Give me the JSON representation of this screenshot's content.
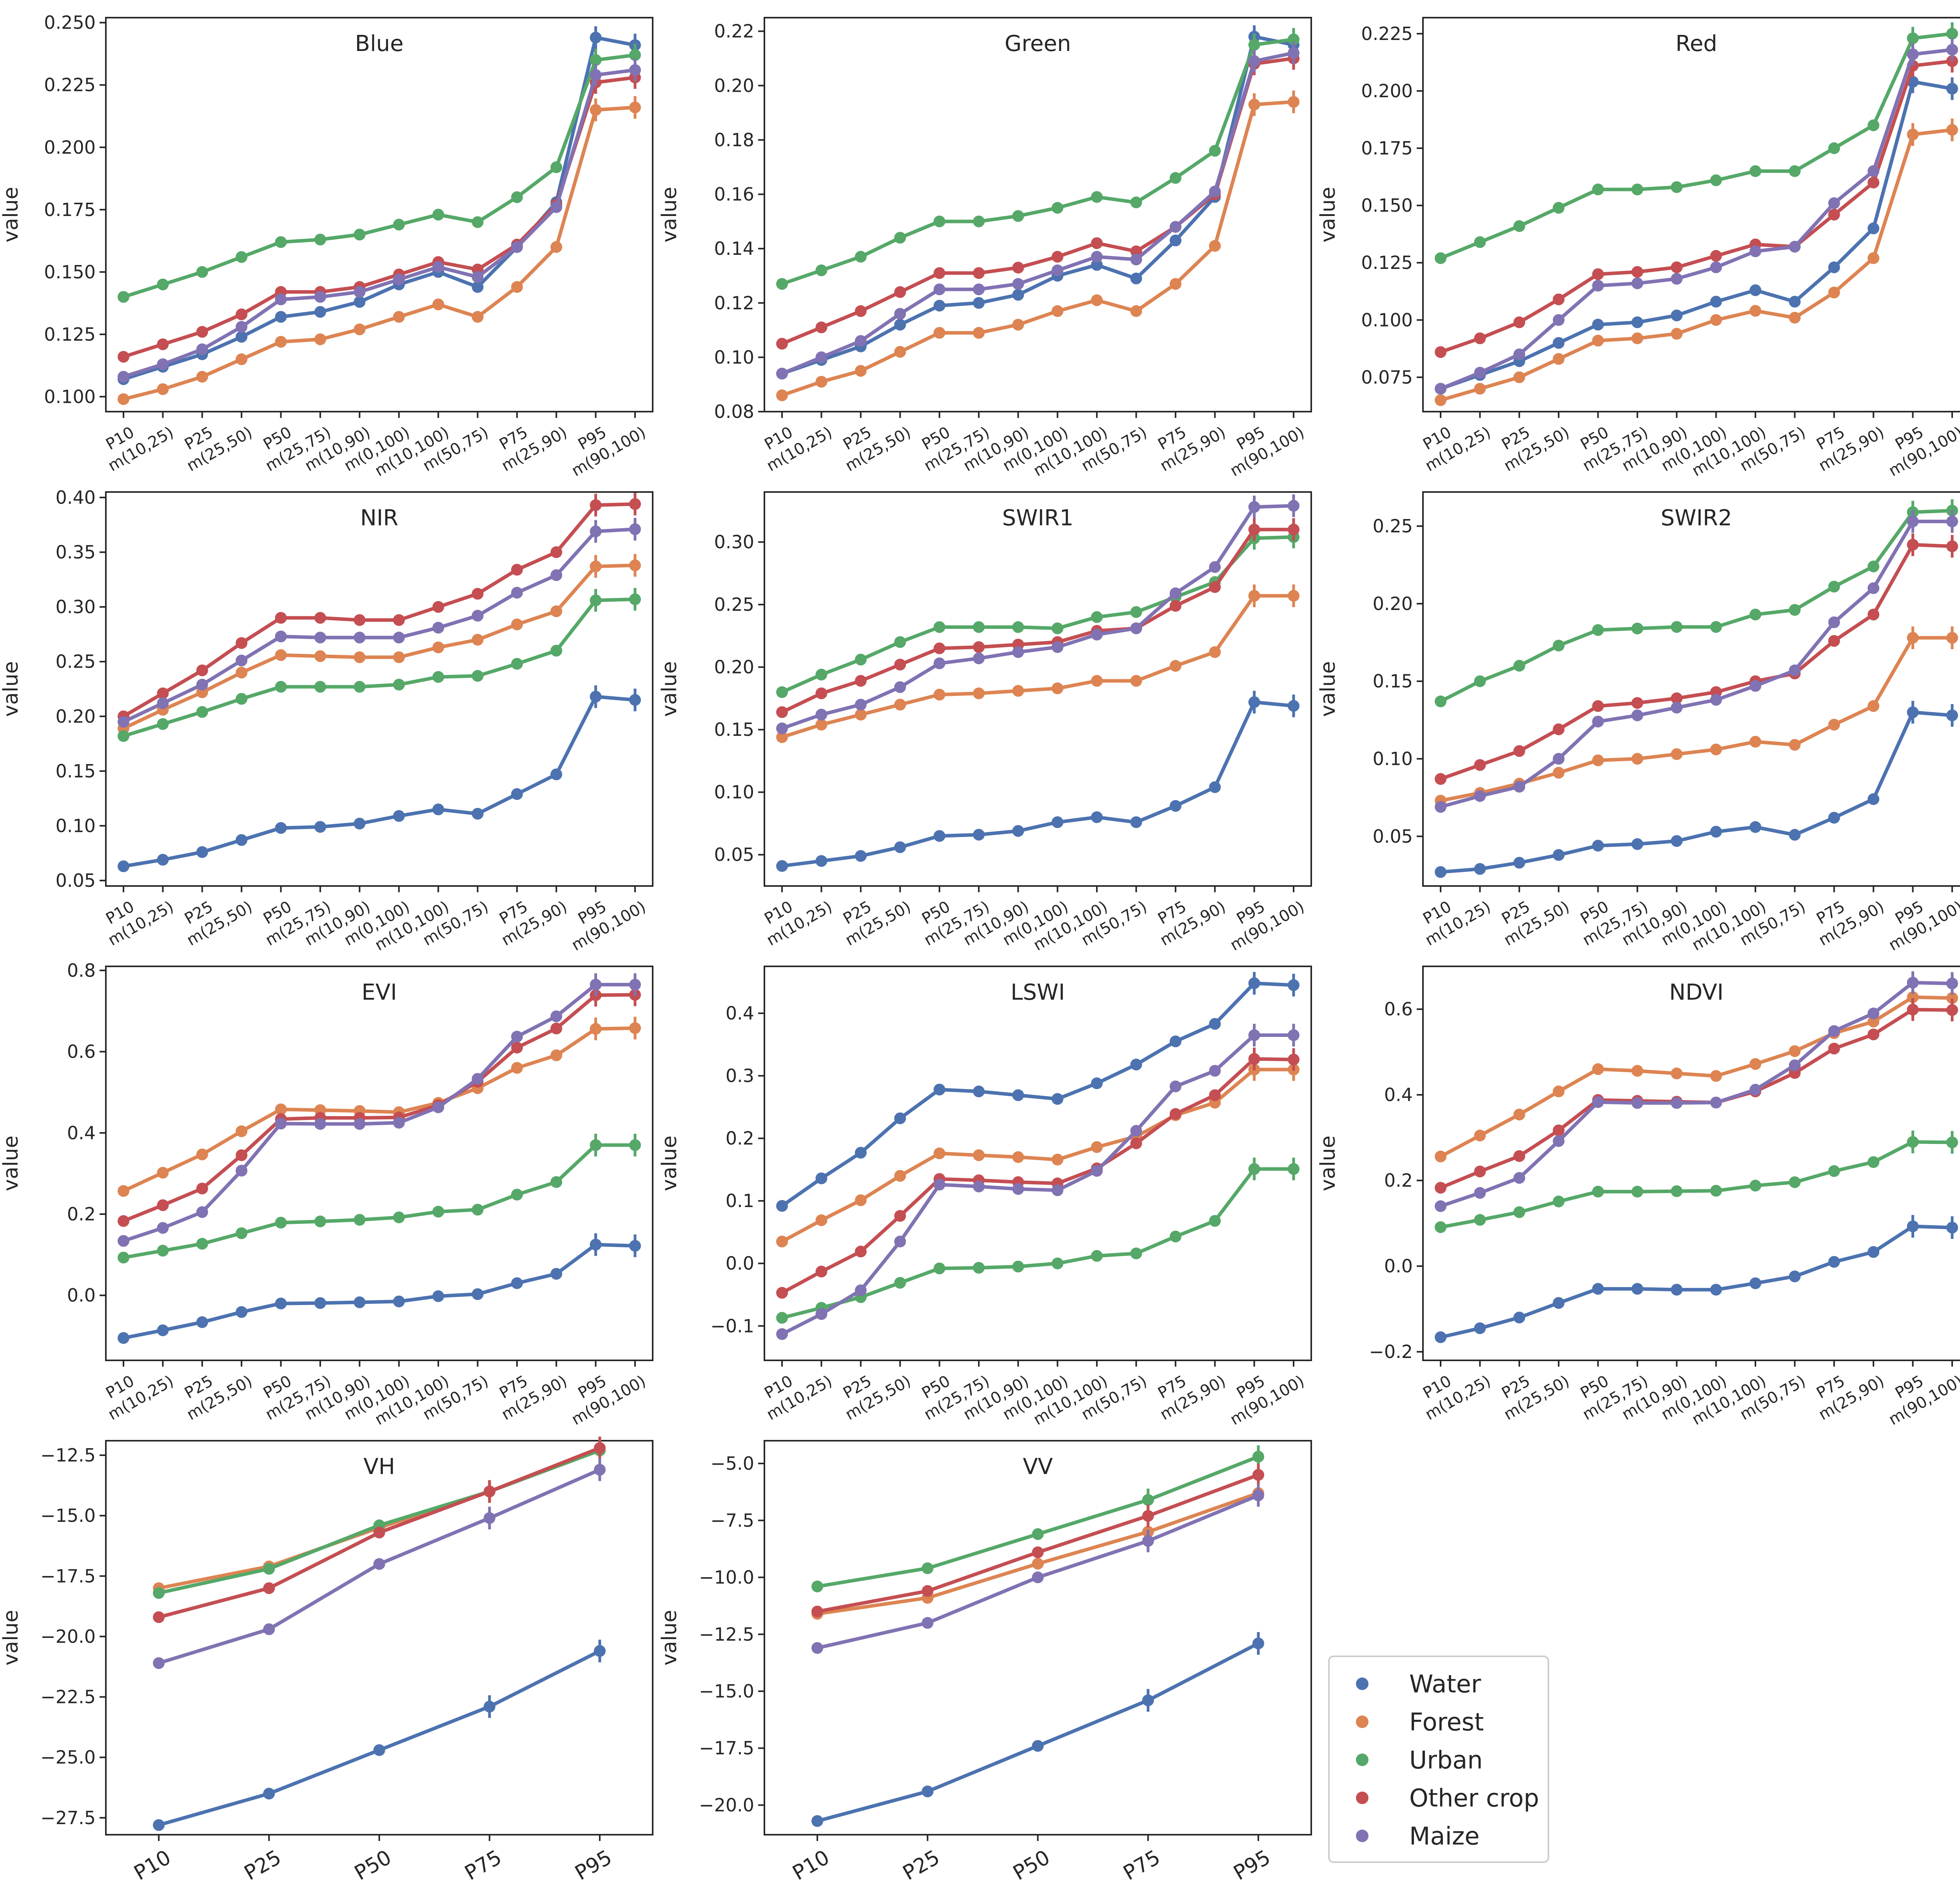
{
  "y_label": "value",
  "series": [
    {
      "name": "Water",
      "color": "#4c72b0"
    },
    {
      "name": "Forest",
      "color": "#dd8452"
    },
    {
      "name": "Urban",
      "color": "#55a868"
    },
    {
      "name": "Other crop",
      "color": "#c44e52"
    },
    {
      "name": "Maize",
      "color": "#8172b3"
    }
  ],
  "categories_long": [
    "P10",
    "m(10,25)",
    "P25",
    "m(25,50)",
    "P50",
    "m(25,75)",
    "m(10,90)",
    "m(0,100)",
    "m(10,100)",
    "m(50,75)",
    "P75",
    "m(25,90)",
    "P95",
    "m(90,100)"
  ],
  "categories_short": [
    "P10",
    "P25",
    "P50",
    "P75",
    "P95"
  ],
  "chart_data": [
    {
      "type": "line",
      "title": "Blue",
      "categories": "long",
      "ylim": [
        0.094,
        0.252
      ],
      "yticks": [
        0.1,
        0.125,
        0.15,
        0.175,
        0.2,
        0.225,
        0.25
      ],
      "ytick_labels": [
        "0.100",
        "0.125",
        "0.150",
        "0.175",
        "0.200",
        "0.225",
        "0.250"
      ],
      "values": {
        "Water": [
          0.107,
          0.112,
          0.117,
          0.124,
          0.132,
          0.134,
          0.138,
          0.145,
          0.15,
          0.144,
          0.16,
          0.178,
          0.244,
          0.241
        ],
        "Forest": [
          0.099,
          0.103,
          0.108,
          0.115,
          0.122,
          0.123,
          0.127,
          0.132,
          0.137,
          0.132,
          0.144,
          0.16,
          0.215,
          0.216
        ],
        "Urban": [
          0.14,
          0.145,
          0.15,
          0.156,
          0.162,
          0.163,
          0.165,
          0.169,
          0.173,
          0.17,
          0.18,
          0.192,
          0.235,
          0.237
        ],
        "Other crop": [
          0.116,
          0.121,
          0.126,
          0.133,
          0.142,
          0.142,
          0.144,
          0.149,
          0.154,
          0.151,
          0.161,
          0.177,
          0.226,
          0.228
        ],
        "Maize": [
          0.108,
          0.113,
          0.119,
          0.128,
          0.139,
          0.14,
          0.142,
          0.147,
          0.152,
          0.148,
          0.16,
          0.176,
          0.229,
          0.231
        ]
      }
    },
    {
      "type": "line",
      "title": "Green",
      "categories": "long",
      "ylim": [
        0.08,
        0.225
      ],
      "yticks": [
        0.08,
        0.1,
        0.12,
        0.14,
        0.16,
        0.18,
        0.2,
        0.22
      ],
      "ytick_labels": [
        "0.08",
        "0.10",
        "0.12",
        "0.14",
        "0.16",
        "0.18",
        "0.20",
        "0.22"
      ],
      "values": {
        "Water": [
          0.094,
          0.099,
          0.104,
          0.112,
          0.119,
          0.12,
          0.123,
          0.13,
          0.134,
          0.129,
          0.143,
          0.159,
          0.218,
          0.215
        ],
        "Forest": [
          0.086,
          0.091,
          0.095,
          0.102,
          0.109,
          0.109,
          0.112,
          0.117,
          0.121,
          0.117,
          0.127,
          0.141,
          0.193,
          0.194
        ],
        "Urban": [
          0.127,
          0.132,
          0.137,
          0.144,
          0.15,
          0.15,
          0.152,
          0.155,
          0.159,
          0.157,
          0.166,
          0.176,
          0.215,
          0.217
        ],
        "Other crop": [
          0.105,
          0.111,
          0.117,
          0.124,
          0.131,
          0.131,
          0.133,
          0.137,
          0.142,
          0.139,
          0.148,
          0.16,
          0.208,
          0.21
        ],
        "Maize": [
          0.094,
          0.1,
          0.106,
          0.116,
          0.125,
          0.125,
          0.127,
          0.132,
          0.137,
          0.136,
          0.148,
          0.161,
          0.209,
          0.212
        ]
      }
    },
    {
      "type": "line",
      "title": "Red",
      "categories": "long",
      "ylim": [
        0.06,
        0.232
      ],
      "yticks": [
        0.075,
        0.1,
        0.125,
        0.15,
        0.175,
        0.2,
        0.225
      ],
      "ytick_labels": [
        "0.075",
        "0.100",
        "0.125",
        "0.150",
        "0.175",
        "0.200",
        "0.225"
      ],
      "values": {
        "Water": [
          0.07,
          0.076,
          0.082,
          0.09,
          0.098,
          0.099,
          0.102,
          0.108,
          0.113,
          0.108,
          0.123,
          0.14,
          0.204,
          0.201
        ],
        "Forest": [
          0.065,
          0.07,
          0.075,
          0.083,
          0.091,
          0.092,
          0.094,
          0.1,
          0.104,
          0.101,
          0.112,
          0.127,
          0.181,
          0.183
        ],
        "Urban": [
          0.127,
          0.134,
          0.141,
          0.149,
          0.157,
          0.157,
          0.158,
          0.161,
          0.165,
          0.165,
          0.175,
          0.185,
          0.223,
          0.225
        ],
        "Other crop": [
          0.086,
          0.092,
          0.099,
          0.109,
          0.12,
          0.121,
          0.123,
          0.128,
          0.133,
          0.132,
          0.146,
          0.16,
          0.211,
          0.213
        ],
        "Maize": [
          0.07,
          0.077,
          0.085,
          0.1,
          0.115,
          0.116,
          0.118,
          0.123,
          0.13,
          0.132,
          0.151,
          0.165,
          0.216,
          0.218
        ]
      }
    },
    {
      "type": "line",
      "title": "NIR",
      "categories": "long",
      "ylim": [
        0.045,
        0.405
      ],
      "yticks": [
        0.05,
        0.1,
        0.15,
        0.2,
        0.25,
        0.3,
        0.35,
        0.4
      ],
      "ytick_labels": [
        "0.05",
        "0.10",
        "0.15",
        "0.20",
        "0.25",
        "0.30",
        "0.35",
        "0.40"
      ],
      "values": {
        "Water": [
          0.063,
          0.069,
          0.076,
          0.087,
          0.098,
          0.099,
          0.102,
          0.109,
          0.115,
          0.111,
          0.129,
          0.147,
          0.218,
          0.215
        ],
        "Forest": [
          0.189,
          0.206,
          0.222,
          0.24,
          0.256,
          0.255,
          0.254,
          0.254,
          0.263,
          0.27,
          0.284,
          0.296,
          0.337,
          0.338
        ],
        "Urban": [
          0.182,
          0.193,
          0.204,
          0.216,
          0.227,
          0.227,
          0.227,
          0.229,
          0.236,
          0.237,
          0.248,
          0.26,
          0.306,
          0.307
        ],
        "Other crop": [
          0.2,
          0.221,
          0.242,
          0.267,
          0.29,
          0.29,
          0.288,
          0.288,
          0.3,
          0.312,
          0.334,
          0.35,
          0.393,
          0.394
        ],
        "Maize": [
          0.195,
          0.212,
          0.229,
          0.251,
          0.273,
          0.272,
          0.272,
          0.272,
          0.281,
          0.292,
          0.313,
          0.329,
          0.369,
          0.371
        ]
      }
    },
    {
      "type": "line",
      "title": "SWIR1",
      "categories": "long",
      "ylim": [
        0.025,
        0.34
      ],
      "yticks": [
        0.05,
        0.1,
        0.15,
        0.2,
        0.25,
        0.3
      ],
      "ytick_labels": [
        "0.05",
        "0.10",
        "0.15",
        "0.20",
        "0.25",
        "0.30"
      ],
      "values": {
        "Water": [
          0.041,
          0.045,
          0.049,
          0.056,
          0.065,
          0.066,
          0.069,
          0.076,
          0.08,
          0.076,
          0.089,
          0.104,
          0.172,
          0.169
        ],
        "Forest": [
          0.144,
          0.154,
          0.162,
          0.17,
          0.178,
          0.179,
          0.181,
          0.183,
          0.189,
          0.189,
          0.201,
          0.212,
          0.257,
          0.257
        ],
        "Urban": [
          0.18,
          0.194,
          0.206,
          0.22,
          0.232,
          0.232,
          0.232,
          0.231,
          0.24,
          0.244,
          0.256,
          0.268,
          0.303,
          0.304
        ],
        "Other crop": [
          0.164,
          0.179,
          0.189,
          0.202,
          0.215,
          0.216,
          0.218,
          0.22,
          0.229,
          0.231,
          0.249,
          0.264,
          0.31,
          0.31
        ],
        "Maize": [
          0.151,
          0.162,
          0.17,
          0.184,
          0.203,
          0.207,
          0.212,
          0.216,
          0.226,
          0.231,
          0.259,
          0.28,
          0.328,
          0.329
        ]
      }
    },
    {
      "type": "line",
      "title": "SWIR2",
      "categories": "long",
      "ylim": [
        0.018,
        0.272
      ],
      "yticks": [
        0.05,
        0.1,
        0.15,
        0.2,
        0.25
      ],
      "ytick_labels": [
        "0.05",
        "0.10",
        "0.15",
        "0.20",
        "0.25"
      ],
      "values": {
        "Water": [
          0.027,
          0.029,
          0.033,
          0.038,
          0.044,
          0.045,
          0.047,
          0.053,
          0.056,
          0.051,
          0.062,
          0.074,
          0.13,
          0.128
        ],
        "Forest": [
          0.073,
          0.078,
          0.084,
          0.091,
          0.099,
          0.1,
          0.103,
          0.106,
          0.111,
          0.109,
          0.122,
          0.134,
          0.178,
          0.178
        ],
        "Urban": [
          0.137,
          0.15,
          0.16,
          0.173,
          0.183,
          0.184,
          0.185,
          0.185,
          0.193,
          0.196,
          0.211,
          0.224,
          0.259,
          0.26
        ],
        "Other crop": [
          0.087,
          0.096,
          0.105,
          0.119,
          0.134,
          0.136,
          0.139,
          0.143,
          0.15,
          0.155,
          0.176,
          0.193,
          0.238,
          0.237
        ],
        "Maize": [
          0.069,
          0.076,
          0.082,
          0.1,
          0.124,
          0.128,
          0.133,
          0.138,
          0.147,
          0.157,
          0.188,
          0.21,
          0.253,
          0.253
        ]
      }
    },
    {
      "type": "line",
      "title": "EVI",
      "categories": "long",
      "ylim": [
        -0.16,
        0.81
      ],
      "yticks": [
        0.0,
        0.2,
        0.4,
        0.6,
        0.8
      ],
      "ytick_labels": [
        "0.0",
        "0.2",
        "0.4",
        "0.6",
        "0.8"
      ],
      "values": {
        "Water": [
          -0.105,
          -0.086,
          -0.066,
          -0.041,
          -0.02,
          -0.019,
          -0.017,
          -0.015,
          -0.002,
          0.003,
          0.03,
          0.053,
          0.125,
          0.122
        ],
        "Forest": [
          0.257,
          0.302,
          0.347,
          0.404,
          0.458,
          0.456,
          0.454,
          0.451,
          0.474,
          0.51,
          0.56,
          0.591,
          0.656,
          0.658
        ],
        "Urban": [
          0.093,
          0.11,
          0.127,
          0.153,
          0.179,
          0.182,
          0.186,
          0.192,
          0.206,
          0.211,
          0.248,
          0.279,
          0.37,
          0.37
        ],
        "Other crop": [
          0.183,
          0.222,
          0.263,
          0.345,
          0.434,
          0.437,
          0.437,
          0.438,
          0.468,
          0.526,
          0.61,
          0.657,
          0.739,
          0.74
        ],
        "Maize": [
          0.134,
          0.166,
          0.205,
          0.307,
          0.423,
          0.422,
          0.422,
          0.425,
          0.463,
          0.533,
          0.637,
          0.687,
          0.765,
          0.765
        ]
      }
    },
    {
      "type": "line",
      "title": "LSWI",
      "categories": "long",
      "ylim": [
        -0.155,
        0.475
      ],
      "yticks": [
        -0.1,
        0.0,
        0.1,
        0.2,
        0.3,
        0.4
      ],
      "ytick_labels": [
        "−0.1",
        "0.0",
        "0.1",
        "0.2",
        "0.3",
        "0.4"
      ],
      "values": {
        "Water": [
          0.092,
          0.136,
          0.177,
          0.232,
          0.278,
          0.275,
          0.269,
          0.263,
          0.288,
          0.318,
          0.355,
          0.383,
          0.448,
          0.445
        ],
        "Forest": [
          0.035,
          0.069,
          0.101,
          0.14,
          0.176,
          0.173,
          0.17,
          0.166,
          0.186,
          0.203,
          0.237,
          0.257,
          0.31,
          0.31
        ],
        "Urban": [
          -0.087,
          -0.071,
          -0.054,
          -0.031,
          -0.008,
          -0.007,
          -0.005,
          0.0,
          0.012,
          0.016,
          0.043,
          0.068,
          0.151,
          0.151
        ],
        "Other crop": [
          -0.047,
          -0.013,
          0.019,
          0.076,
          0.135,
          0.133,
          0.13,
          0.128,
          0.152,
          0.192,
          0.239,
          0.269,
          0.327,
          0.326
        ],
        "Maize": [
          -0.113,
          -0.081,
          -0.043,
          0.035,
          0.126,
          0.123,
          0.119,
          0.117,
          0.148,
          0.212,
          0.283,
          0.308,
          0.365,
          0.365
        ]
      }
    },
    {
      "type": "line",
      "title": "NDVI",
      "categories": "long",
      "ylim": [
        -0.22,
        0.7
      ],
      "yticks": [
        -0.2,
        0.0,
        0.2,
        0.4,
        0.6
      ],
      "ytick_labels": [
        "−0.2",
        "0.0",
        "0.2",
        "0.4",
        "0.6"
      ],
      "values": {
        "Water": [
          -0.166,
          -0.145,
          -0.12,
          -0.086,
          -0.053,
          -0.053,
          -0.055,
          -0.055,
          -0.04,
          -0.024,
          0.01,
          0.033,
          0.093,
          0.09
        ],
        "Forest": [
          0.256,
          0.305,
          0.354,
          0.408,
          0.46,
          0.456,
          0.45,
          0.444,
          0.472,
          0.502,
          0.544,
          0.571,
          0.628,
          0.626
        ],
        "Urban": [
          0.091,
          0.108,
          0.126,
          0.151,
          0.174,
          0.174,
          0.175,
          0.176,
          0.188,
          0.196,
          0.222,
          0.243,
          0.29,
          0.289
        ],
        "Other crop": [
          0.183,
          0.221,
          0.257,
          0.317,
          0.388,
          0.386,
          0.384,
          0.382,
          0.408,
          0.451,
          0.508,
          0.541,
          0.599,
          0.598
        ],
        "Maize": [
          0.14,
          0.171,
          0.206,
          0.292,
          0.383,
          0.381,
          0.381,
          0.382,
          0.412,
          0.469,
          0.549,
          0.59,
          0.662,
          0.66
        ]
      }
    },
    {
      "type": "line",
      "title": "VH",
      "categories": "short",
      "ylim": [
        -28.2,
        -11.9
      ],
      "yticks": [
        -27.5,
        -25.0,
        -22.5,
        -20.0,
        -17.5,
        -15.0,
        -12.5
      ],
      "ytick_labels": [
        "−27.5",
        "−25.0",
        "−22.5",
        "−20.0",
        "−17.5",
        "−15.0",
        "−12.5"
      ],
      "values": {
        "Water": [
          -27.8,
          -26.5,
          -24.7,
          -22.9,
          -20.6
        ],
        "Forest": [
          -18.0,
          -17.1,
          -15.5,
          -14.0,
          -12.3
        ],
        "Urban": [
          -18.2,
          -17.2,
          -15.4,
          -14.0,
          -12.3
        ],
        "Other crop": [
          -19.2,
          -18.0,
          -15.7,
          -14.0,
          -12.2
        ],
        "Maize": [
          -21.1,
          -19.7,
          -17.0,
          -15.1,
          -13.1
        ]
      }
    },
    {
      "type": "line",
      "title": "VV",
      "categories": "short",
      "ylim": [
        -21.3,
        -4.0
      ],
      "yticks": [
        -20.0,
        -17.5,
        -15.0,
        -12.5,
        -10.0,
        -7.5,
        -5.0
      ],
      "ytick_labels": [
        "−20.0",
        "−17.5",
        "−15.0",
        "−12.5",
        "−10.0",
        "−7.5",
        "−5.0"
      ],
      "values": {
        "Water": [
          -20.7,
          -19.4,
          -17.4,
          -15.4,
          -12.9
        ],
        "Forest": [
          -11.6,
          -10.9,
          -9.4,
          -8.0,
          -6.3
        ],
        "Urban": [
          -10.4,
          -9.6,
          -8.1,
          -6.6,
          -4.7
        ],
        "Other crop": [
          -11.5,
          -10.6,
          -8.9,
          -7.3,
          -5.5
        ],
        "Maize": [
          -13.1,
          -12.0,
          -10.0,
          -8.4,
          -6.4
        ]
      }
    }
  ]
}
